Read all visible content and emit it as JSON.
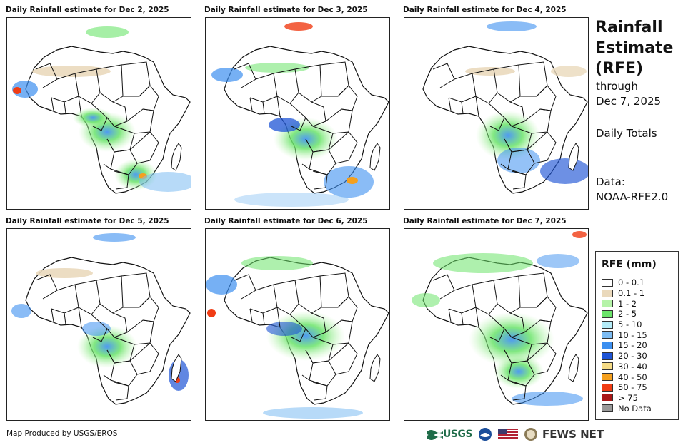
{
  "panels": [
    {
      "title": "Daily Rainfall estimate for Dec 2, 2025"
    },
    {
      "title": "Daily Rainfall estimate for Dec 3, 2025"
    },
    {
      "title": "Daily Rainfall estimate for Dec 4, 2025"
    },
    {
      "title": "Daily Rainfall estimate for Dec 5, 2025"
    },
    {
      "title": "Daily Rainfall estimate for Dec 6, 2025"
    },
    {
      "title": "Daily Rainfall estimate for Dec 7, 2025"
    }
  ],
  "side": {
    "title_line1": "Rainfall",
    "title_line2": "Estimate",
    "title_line3": "(RFE)",
    "through": "through",
    "date": "Dec 7, 2025",
    "totals": "Daily Totals",
    "data_label": "Data:",
    "data_source": "NOAA-RFE2.0"
  },
  "legend": {
    "title": "RFE (mm)",
    "items": [
      {
        "label": "0 - 0.1",
        "color": "#ffffff"
      },
      {
        "label": "0.1 - 1",
        "color": "#ead9bc"
      },
      {
        "label": "1 - 2",
        "color": "#b5f3a8"
      },
      {
        "label": "2 - 5",
        "color": "#6be46a"
      },
      {
        "label": "5 - 10",
        "color": "#b4ecf8"
      },
      {
        "label": "10 - 15",
        "color": "#7cbcf3"
      },
      {
        "label": "15 - 20",
        "color": "#3c8ff0"
      },
      {
        "label": "20 - 30",
        "color": "#1e54d6"
      },
      {
        "label": "30 - 40",
        "color": "#f6dc86"
      },
      {
        "label": "40 - 50",
        "color": "#f5a01e"
      },
      {
        "label": "50 - 75",
        "color": "#f03c14"
      },
      {
        "label": "> 75",
        "color": "#a81818"
      },
      {
        "label": "No Data",
        "color": "#999999"
      }
    ]
  },
  "footer": {
    "credit": "Map Produced by USGS/EROS",
    "usgs": "USGS",
    "fews": "FEWS NET"
  }
}
